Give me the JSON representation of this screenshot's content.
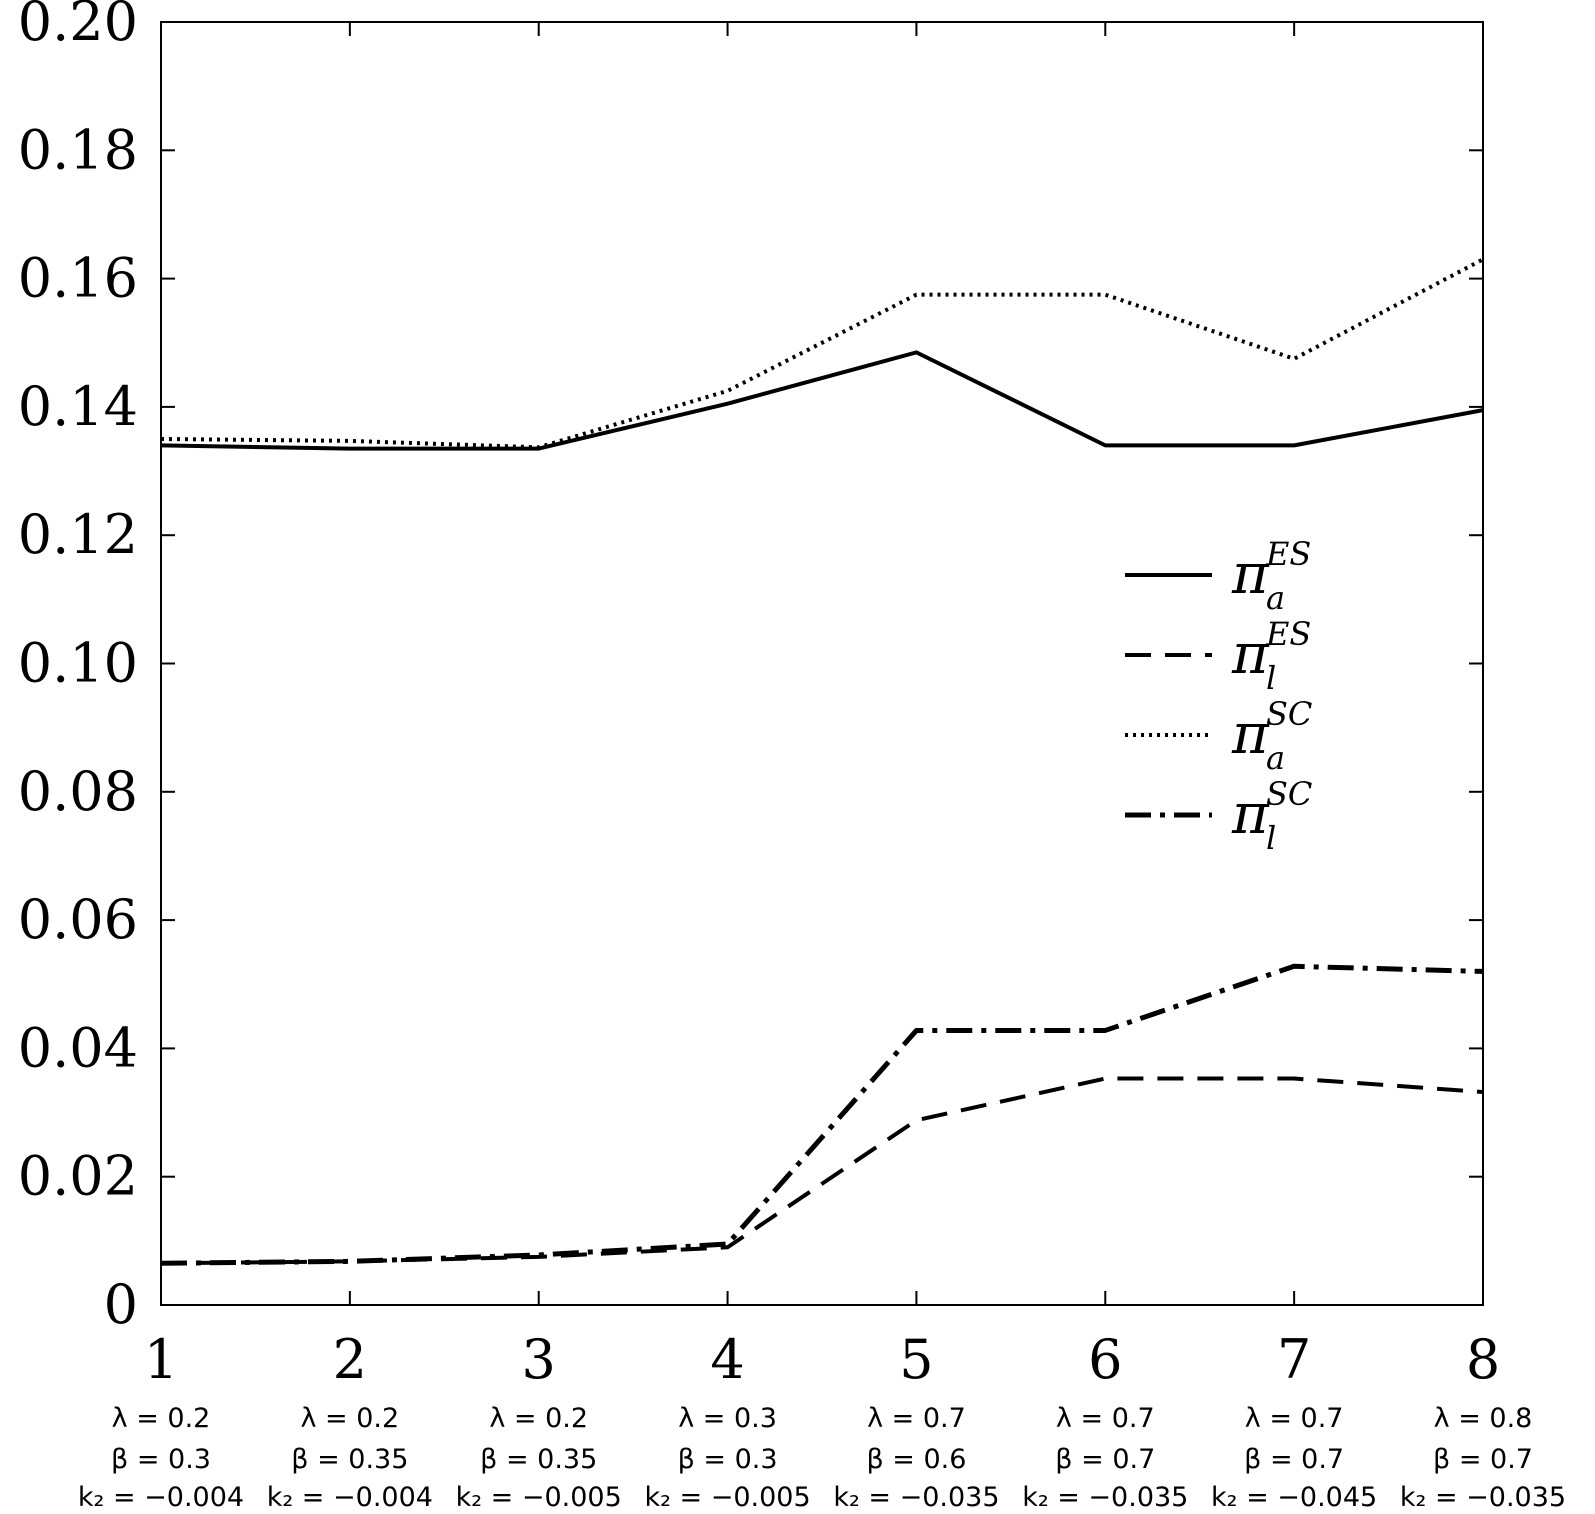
{
  "chart_data": {
    "type": "line",
    "x": [
      1,
      2,
      3,
      4,
      5,
      6,
      7,
      8
    ],
    "x_tick_labels": [
      "1",
      "2",
      "3",
      "4",
      "5",
      "6",
      "7",
      "8"
    ],
    "y_tick_labels": [
      "0",
      "0.02",
      "0.04",
      "0.06",
      "0.08",
      "0.10",
      "0.12",
      "0.14",
      "0.16",
      "0.18",
      "0.20"
    ],
    "xlim": [
      1,
      8
    ],
    "ylim": [
      0,
      0.2
    ],
    "grid": false,
    "legend_position": "center-right",
    "parameters": [
      {
        "lambda": "λ = 0.2",
        "beta": "β = 0.3",
        "k2": "k₂ = −0.004"
      },
      {
        "lambda": "λ = 0.2",
        "beta": "β = 0.35",
        "k2": "k₂ = −0.004"
      },
      {
        "lambda": "λ = 0.2",
        "beta": "β = 0.35",
        "k2": "k₂ = −0.005"
      },
      {
        "lambda": "λ = 0.3",
        "beta": "β = 0.3",
        "k2": "k₂ = −0.005"
      },
      {
        "lambda": "λ = 0.7",
        "beta": "β = 0.6",
        "k2": "k₂ = −0.035"
      },
      {
        "lambda": "λ = 0.7",
        "beta": "β = 0.7",
        "k2": "k₂ = −0.035"
      },
      {
        "lambda": "λ = 0.7",
        "beta": "β = 0.7",
        "k2": "k₂ = −0.045"
      },
      {
        "lambda": "λ = 0.8",
        "beta": "β = 0.7",
        "k2": "k₂ = −0.035"
      }
    ],
    "series": [
      {
        "name_main": "π",
        "name_sub": "a",
        "name_sup": "ES",
        "style": "solid",
        "values": [
          0.134,
          0.1335,
          0.1335,
          0.1405,
          0.1485,
          0.134,
          0.134,
          0.1395
        ]
      },
      {
        "name_main": "π",
        "name_sub": "l",
        "name_sup": "ES",
        "style": "dashed",
        "values": [
          0.0065,
          0.0068,
          0.0075,
          0.009,
          0.0288,
          0.0353,
          0.0353,
          0.0332
        ]
      },
      {
        "name_main": "π",
        "name_sub": "a",
        "name_sup": "SC",
        "style": "dotted",
        "values": [
          0.135,
          0.1347,
          0.1337,
          0.1425,
          0.1575,
          0.1575,
          0.1475,
          0.163
        ]
      },
      {
        "name_main": "π",
        "name_sub": "l",
        "name_sup": "SC",
        "style": "dashdot",
        "values": [
          0.0065,
          0.0068,
          0.0078,
          0.0095,
          0.0428,
          0.0428,
          0.0528,
          0.052
        ]
      }
    ]
  }
}
